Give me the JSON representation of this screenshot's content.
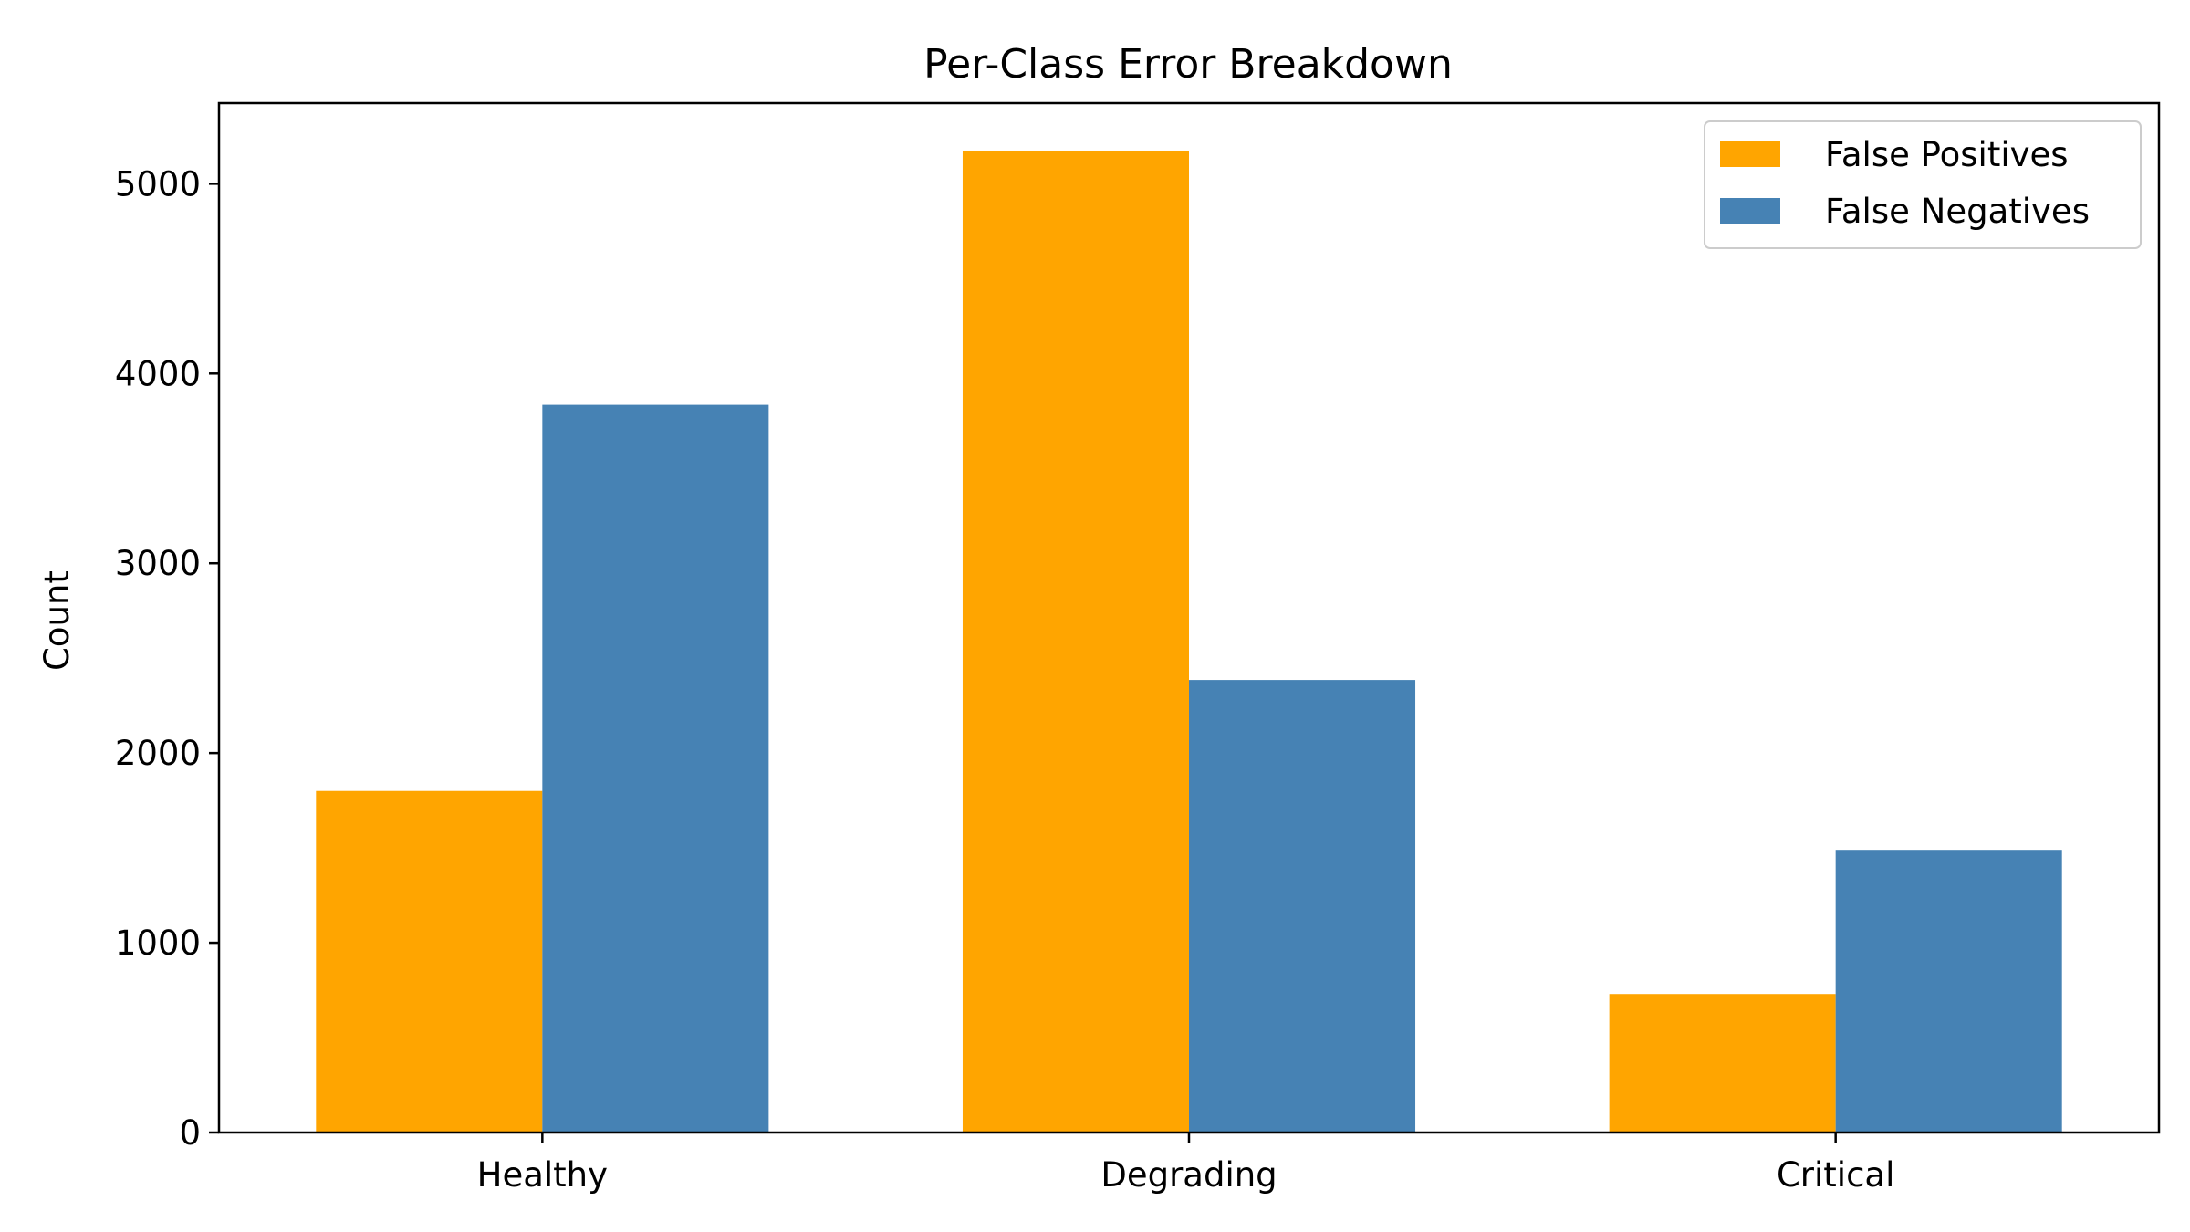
{
  "chart_data": {
    "type": "bar",
    "title": "Per-Class Error Breakdown",
    "xlabel": "",
    "ylabel": "Count",
    "categories": [
      "Healthy",
      "Degrading",
      "Critical"
    ],
    "series": [
      {
        "name": "False Positives",
        "color": "#FFA500",
        "values": [
          1800,
          5175,
          730
        ]
      },
      {
        "name": "False Negatives",
        "color": "#4682B4",
        "values": [
          3835,
          2385,
          1490
        ]
      }
    ],
    "ylim": [
      0,
      5425
    ],
    "yticks": [
      0,
      1000,
      2000,
      3000,
      4000,
      5000
    ],
    "grid": false,
    "legend_position": "top-right"
  }
}
